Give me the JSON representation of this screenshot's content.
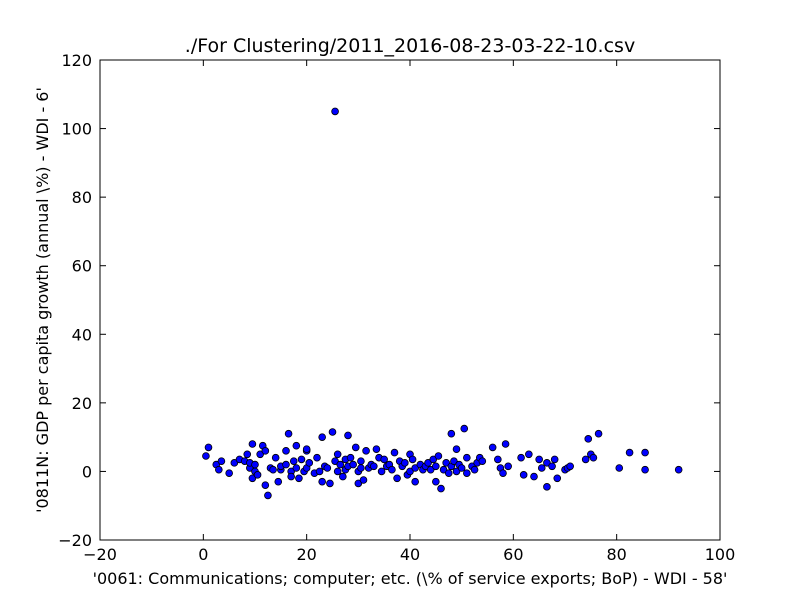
{
  "chart_data": {
    "type": "scatter",
    "title": "./For Clustering/2011_2016-08-23-03-22-10.csv",
    "xlabel": "'0061: Communications; computer; etc.  (\\% of service exports; BoP) - WDI - 58'",
    "ylabel": "'0811N: GDP per capita growth  (annual \\%) - WDI - 6'",
    "xlim": [
      -20,
      100
    ],
    "ylim": [
      -20,
      120
    ],
    "xticks": [
      -20,
      0,
      20,
      40,
      60,
      80,
      100
    ],
    "yticks": [
      -20,
      0,
      20,
      40,
      60,
      80,
      100,
      120
    ],
    "grid": false,
    "marker_color": "#0000ff",
    "marker_edge": "#000000",
    "points": [
      [
        0.5,
        4.5
      ],
      [
        1,
        7
      ],
      [
        2.5,
        2
      ],
      [
        3,
        0.5
      ],
      [
        3.5,
        3
      ],
      [
        5,
        -0.5
      ],
      [
        6,
        2.5
      ],
      [
        7,
        3.5
      ],
      [
        8,
        3
      ],
      [
        8.5,
        5
      ],
      [
        9,
        1
      ],
      [
        9,
        2.5
      ],
      [
        9.5,
        8
      ],
      [
        9.5,
        -2
      ],
      [
        10,
        0
      ],
      [
        10,
        2
      ],
      [
        10.5,
        -1
      ],
      [
        11,
        5
      ],
      [
        11.5,
        7.5
      ],
      [
        12,
        6
      ],
      [
        12,
        -4
      ],
      [
        12.5,
        -7
      ],
      [
        13,
        1
      ],
      [
        13.5,
        0.5
      ],
      [
        14,
        4
      ],
      [
        14.5,
        -3
      ],
      [
        15,
        0.5
      ],
      [
        15,
        1.5
      ],
      [
        16,
        6
      ],
      [
        16,
        2
      ],
      [
        16.5,
        11
      ],
      [
        17,
        0
      ],
      [
        17,
        -1.5
      ],
      [
        17.5,
        3
      ],
      [
        18,
        1
      ],
      [
        18,
        7.5
      ],
      [
        18.5,
        -2
      ],
      [
        19,
        3.5
      ],
      [
        19.5,
        0
      ],
      [
        20,
        1
      ],
      [
        20,
        6
      ],
      [
        20,
        6.5
      ],
      [
        20.5,
        2.5
      ],
      [
        21.5,
        -0.5
      ],
      [
        22,
        4
      ],
      [
        22.5,
        0
      ],
      [
        23,
        -3
      ],
      [
        23,
        10
      ],
      [
        23.5,
        1.5
      ],
      [
        24,
        1
      ],
      [
        24.5,
        -3.5
      ],
      [
        25,
        11.5
      ],
      [
        25.5,
        3
      ],
      [
        25.5,
        105
      ],
      [
        26,
        5
      ],
      [
        26,
        0
      ],
      [
        26.5,
        2
      ],
      [
        27,
        -1.5
      ],
      [
        27.5,
        3.5
      ],
      [
        27.5,
        0.5
      ],
      [
        28,
        10.5
      ],
      [
        28,
        1.5
      ],
      [
        28.5,
        4
      ],
      [
        29,
        2
      ],
      [
        29.5,
        7
      ],
      [
        30,
        0
      ],
      [
        30,
        -3.5
      ],
      [
        30.5,
        1
      ],
      [
        30.5,
        3
      ],
      [
        31,
        -2.5
      ],
      [
        31.5,
        6
      ],
      [
        32,
        1
      ],
      [
        32.5,
        2
      ],
      [
        33,
        1.5
      ],
      [
        33.5,
        6.5
      ],
      [
        34,
        4
      ],
      [
        34.5,
        0
      ],
      [
        35,
        3.5
      ],
      [
        35.5,
        1.5
      ],
      [
        36,
        2
      ],
      [
        36.5,
        0.5
      ],
      [
        37,
        5.5
      ],
      [
        37.5,
        -2
      ],
      [
        38,
        3
      ],
      [
        38.5,
        1.5
      ],
      [
        39,
        2.5
      ],
      [
        39.5,
        -1
      ],
      [
        40,
        5
      ],
      [
        40,
        0
      ],
      [
        40.5,
        3.5
      ],
      [
        41,
        -3
      ],
      [
        41,
        1
      ],
      [
        42,
        2
      ],
      [
        42.5,
        0.5
      ],
      [
        43,
        1.5
      ],
      [
        43.5,
        2.5
      ],
      [
        44,
        0.5
      ],
      [
        44.5,
        3.5
      ],
      [
        45,
        1.5
      ],
      [
        45,
        -3
      ],
      [
        45.5,
        4.5
      ],
      [
        46,
        -5
      ],
      [
        46.5,
        0.5
      ],
      [
        47,
        2.5
      ],
      [
        47.5,
        -0.5
      ],
      [
        48,
        1.5
      ],
      [
        48,
        11
      ],
      [
        48.5,
        3
      ],
      [
        49,
        0
      ],
      [
        49,
        6.5
      ],
      [
        49.5,
        2
      ],
      [
        50,
        1
      ],
      [
        50.5,
        12.5
      ],
      [
        51,
        4
      ],
      [
        51,
        -0.5
      ],
      [
        52,
        1.5
      ],
      [
        52.5,
        0.5
      ],
      [
        53,
        2.5
      ],
      [
        53.5,
        4
      ],
      [
        54,
        3
      ],
      [
        56,
        7
      ],
      [
        57,
        3.5
      ],
      [
        57.5,
        1
      ],
      [
        58,
        -0.5
      ],
      [
        58.5,
        8
      ],
      [
        59,
        1.5
      ],
      [
        61.5,
        4
      ],
      [
        62,
        -1
      ],
      [
        63,
        5
      ],
      [
        64,
        -1.5
      ],
      [
        65,
        3.5
      ],
      [
        65.5,
        1
      ],
      [
        66.5,
        2.5
      ],
      [
        66.5,
        -4.5
      ],
      [
        67.5,
        1.5
      ],
      [
        68,
        3.5
      ],
      [
        68.5,
        -2
      ],
      [
        70,
        0.5
      ],
      [
        70.5,
        1
      ],
      [
        71,
        1.5
      ],
      [
        74,
        3.5
      ],
      [
        74.5,
        9.5
      ],
      [
        75,
        5
      ],
      [
        75.5,
        4
      ],
      [
        76.5,
        11
      ],
      [
        80.5,
        1
      ],
      [
        82.5,
        5.5
      ],
      [
        85.5,
        0.5
      ],
      [
        85.5,
        5.5
      ],
      [
        92,
        0.5
      ]
    ]
  }
}
